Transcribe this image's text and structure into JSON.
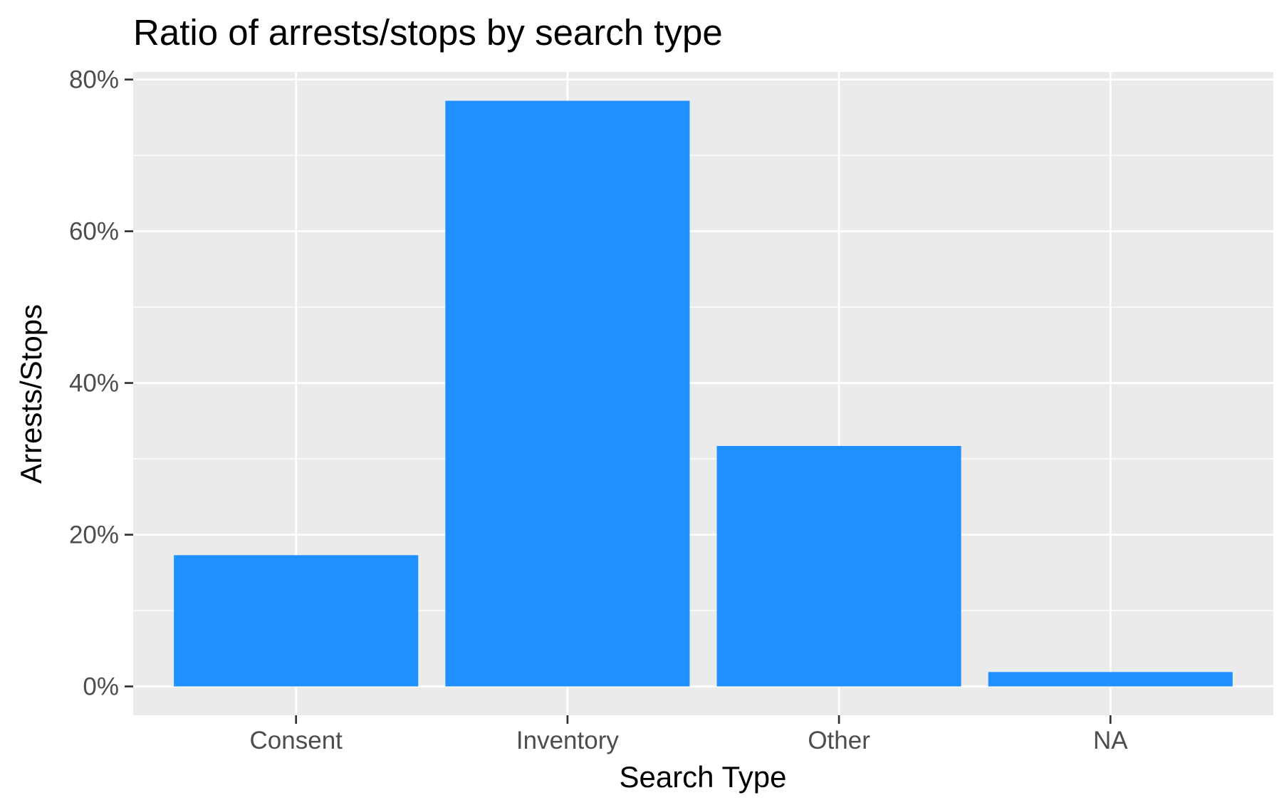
{
  "chart_data": {
    "type": "bar",
    "title": "Ratio of arrests/stops by search type",
    "xlabel": "Search Type",
    "ylabel": "Arrests/Stops",
    "categories": [
      "Consent",
      "Inventory",
      "Other",
      "NA"
    ],
    "values": [
      17.3,
      77.2,
      31.7,
      1.9
    ],
    "ylim": [
      -3.8,
      81.0
    ],
    "yticks": [
      0,
      20,
      40,
      60,
      80
    ],
    "ytick_labels": [
      "0%",
      "20%",
      "40%",
      "60%",
      "80%"
    ],
    "grid": true,
    "legend": "none",
    "colors": {
      "bar": "#1E90FF",
      "panel_background": "#EBEBEB",
      "grid_line": "#FFFFFF",
      "tick_mark": "#333333",
      "tick_label": "#4D4D4D",
      "text": "#000000"
    }
  }
}
